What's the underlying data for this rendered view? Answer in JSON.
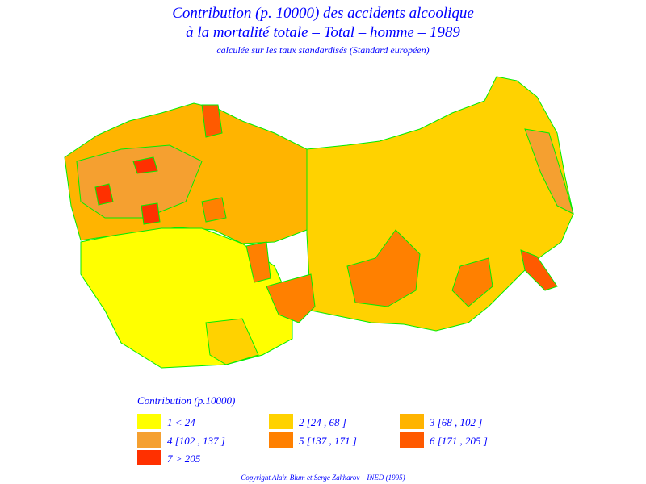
{
  "header": {
    "title_line1": "Contribution (p. 10000) des accidents alcoolique",
    "title_line2": "à la mortalité totale – Total – homme – 1989",
    "subtitle": "calculée sur les taux standardisés (Standard européen)"
  },
  "legend": {
    "title": "Contribution (p.10000)",
    "items": [
      {
        "label": "1  <  24",
        "color": "#ffff00"
      },
      {
        "label": "2 [24 , 68 ]",
        "color": "#ffd200"
      },
      {
        "label": "3 [68 , 102 ]",
        "color": "#ffb400"
      },
      {
        "label": "4 [102 , 137 ]",
        "color": "#f5a030"
      },
      {
        "label": "5 [137 , 171 ]",
        "color": "#ff8000"
      },
      {
        "label": "6 [171 , 205 ]",
        "color": "#ff5a00"
      },
      {
        "label": "7  >  205",
        "color": "#ff3000"
      }
    ]
  },
  "footer": {
    "copyright": "Copyright Alain Blum et Serge Zakharov – INED (1995)"
  }
}
